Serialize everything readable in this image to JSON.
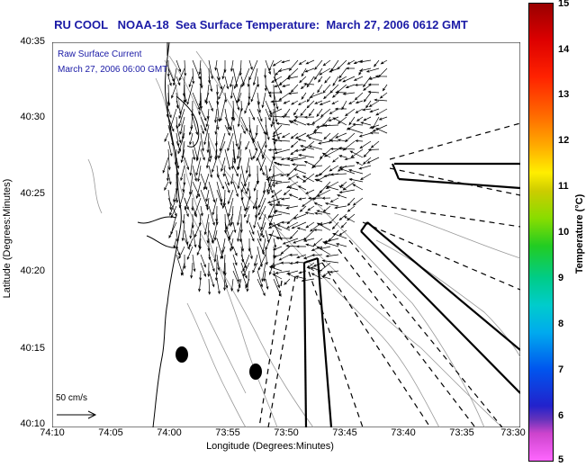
{
  "header": {
    "title": "RU COOL   NOAA-18  Sea Surface Temperature:  March 27, 2006 0612 GMT"
  },
  "overlay": {
    "line1": "Raw Surface Current",
    "line2": "March 27, 2006 06:00 GMT",
    "scale_label": "50 cm/s"
  },
  "axes": {
    "ylabel": "Latitude (Degrees:Minutes)",
    "xlabel": "Longitude (Degrees:Minutes)",
    "yticks": [
      "40:35",
      "40:30",
      "40:25",
      "40:20",
      "40:15",
      "40:10"
    ],
    "xticks": [
      "74:10",
      "74:05",
      "74:00",
      "73:55",
      "73:50",
      "73:45",
      "73:40",
      "73:35",
      "73:30"
    ]
  },
  "colorbar": {
    "label": "Temperature (°C)",
    "ticks": [
      "15",
      "14",
      "13",
      "12",
      "11",
      "10",
      "9",
      "8",
      "7",
      "6",
      "5"
    ]
  },
  "colors": {
    "title": "#1a1aa6",
    "overlay_text": "#1a1aa6",
    "coast": "#000000",
    "bathymetry": "#999999"
  },
  "markers": [
    {
      "name": "buoy-1"
    },
    {
      "name": "buoy-2"
    }
  ]
}
